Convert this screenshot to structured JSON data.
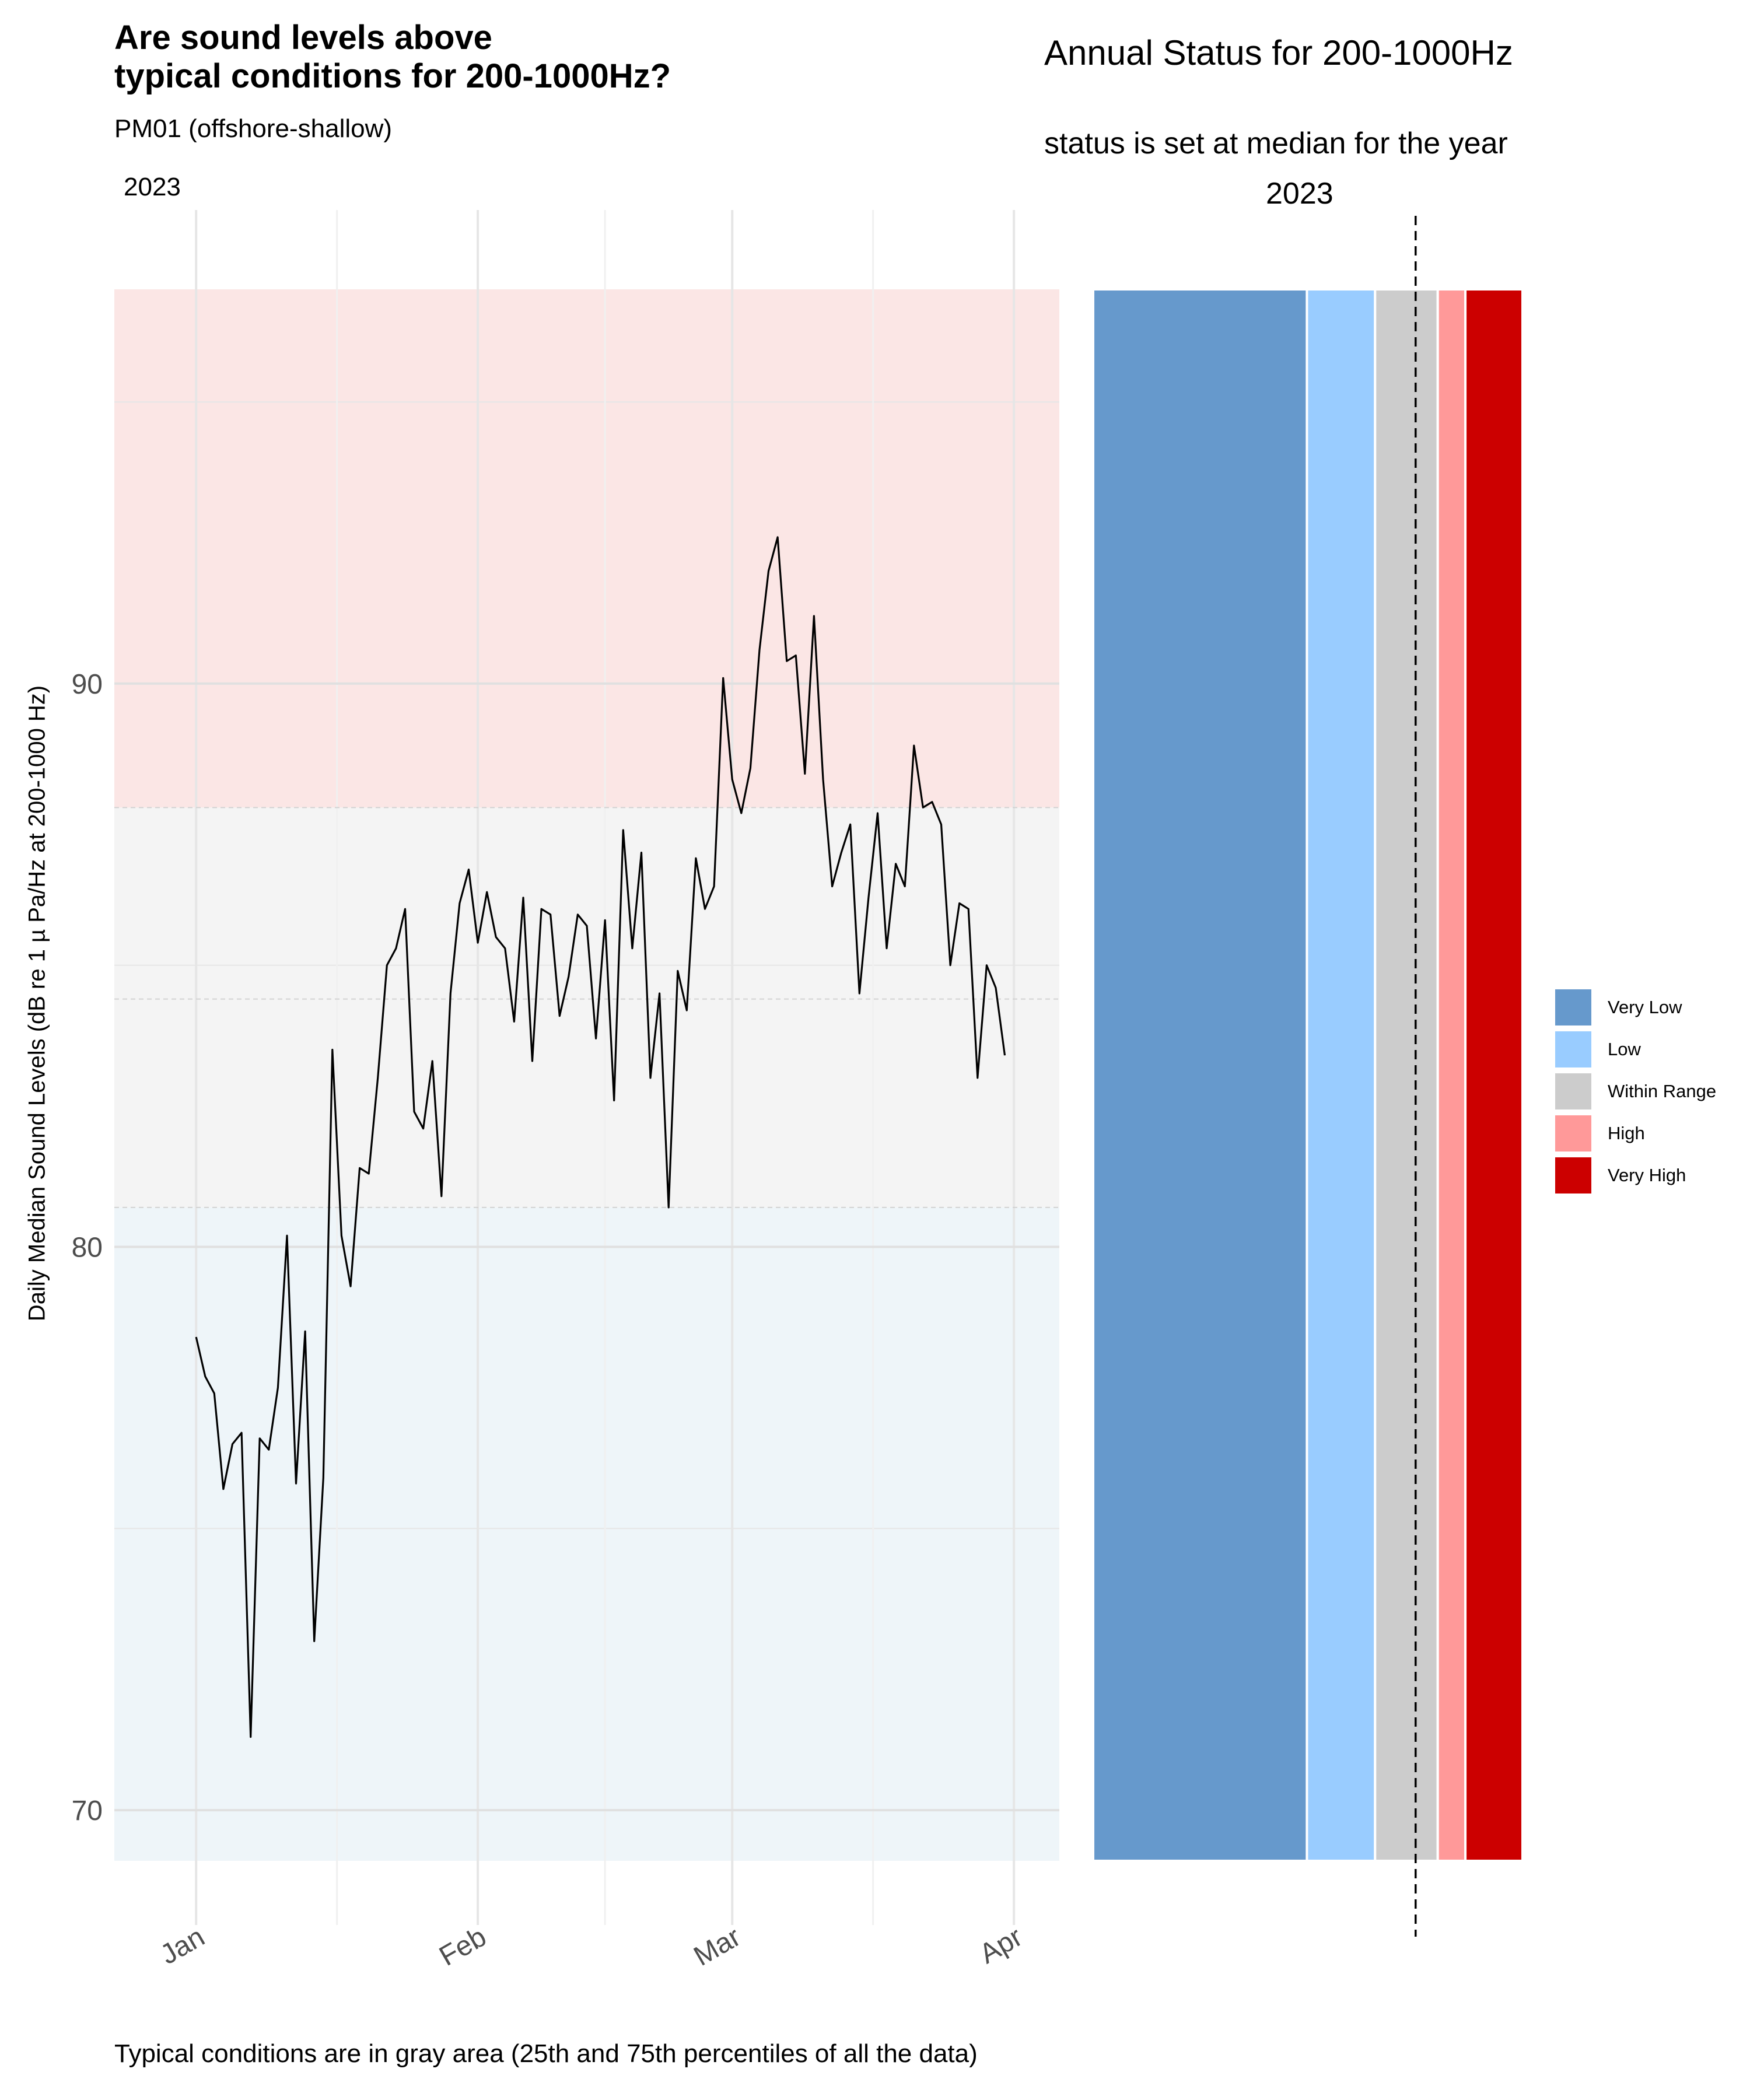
{
  "main": {
    "title": "Are sound levels above\ntypical conditions for 200-1000Hz?",
    "subtitle": "PM01 (offshore-shallow)",
    "facet_year": "2023",
    "caption": "Typical conditions are in gray area (25th and 75th percentiles of all the data)"
  },
  "side": {
    "title": "Annual Status for 200-1000Hz",
    "subtitle": "status is set at median for the year",
    "year": "2023"
  },
  "legend": [
    {
      "label": "Very Low",
      "color": "#6699cc"
    },
    {
      "label": "Low",
      "color": "#99ccff"
    },
    {
      "label": "Within Range",
      "color": "#cccccc"
    },
    {
      "label": "High",
      "color": "#ff9999"
    },
    {
      "label": "Very High",
      "color": "#cc0000"
    }
  ],
  "chart_data": [
    {
      "type": "line",
      "ylabel": "Daily Median Sound Levels (dB re 1 µ Pa/Hz at 200-1000 Hz)",
      "xlabel": "",
      "ylim": [
        69.1,
        97.0
      ],
      "yticks": [
        70,
        80,
        90
      ],
      "xlim": [
        "2022-12-23",
        "2023-04-06"
      ],
      "xticks": [
        {
          "date": "2023-01-01",
          "label": "Jan"
        },
        {
          "date": "2023-02-01",
          "label": "Feb"
        },
        {
          "date": "2023-03-01",
          "label": "Mar"
        },
        {
          "date": "2023-04-01",
          "label": "Apr"
        }
      ],
      "grid": true,
      "bands": [
        {
          "name": "Low",
          "from": 69.1,
          "to": 80.7,
          "color": "#eef5f9"
        },
        {
          "name": "Within Range",
          "from": 80.7,
          "to": 87.8,
          "color": "#f4f4f4"
        },
        {
          "name": "High",
          "from": 87.8,
          "to": 97.0,
          "color": "#fbe6e5"
        }
      ],
      "reference_lines": [
        80.7,
        84.4,
        87.8
      ],
      "series": [
        {
          "color": "#000000",
          "x": [
            "2023-01-01",
            "2023-01-02",
            "2023-01-03",
            "2023-01-04",
            "2023-01-05",
            "2023-01-06",
            "2023-01-07",
            "2023-01-08",
            "2023-01-09",
            "2023-01-10",
            "2023-01-11",
            "2023-01-12",
            "2023-01-13",
            "2023-01-14",
            "2023-01-15",
            "2023-01-16",
            "2023-01-17",
            "2023-01-18",
            "2023-01-19",
            "2023-01-20",
            "2023-01-21",
            "2023-01-22",
            "2023-01-23",
            "2023-01-24",
            "2023-01-25",
            "2023-01-26",
            "2023-01-27",
            "2023-01-28",
            "2023-01-29",
            "2023-01-30",
            "2023-01-31",
            "2023-02-01",
            "2023-02-02",
            "2023-02-03",
            "2023-02-04",
            "2023-02-05",
            "2023-02-06",
            "2023-02-07",
            "2023-02-08",
            "2023-02-09",
            "2023-02-10",
            "2023-02-11",
            "2023-02-12",
            "2023-02-13",
            "2023-02-14",
            "2023-02-15",
            "2023-02-16",
            "2023-02-17",
            "2023-02-18",
            "2023-02-19",
            "2023-02-20",
            "2023-02-21",
            "2023-02-22",
            "2023-02-23",
            "2023-02-24",
            "2023-02-25",
            "2023-02-26",
            "2023-02-27",
            "2023-02-28",
            "2023-03-01",
            "2023-03-02",
            "2023-03-03",
            "2023-03-04",
            "2023-03-05",
            "2023-03-06",
            "2023-03-07",
            "2023-03-08",
            "2023-03-09",
            "2023-03-10",
            "2023-03-11",
            "2023-03-12",
            "2023-03-13",
            "2023-03-14",
            "2023-03-15",
            "2023-03-16",
            "2023-03-17",
            "2023-03-18",
            "2023-03-19",
            "2023-03-20",
            "2023-03-21",
            "2023-03-22",
            "2023-03-23",
            "2023-03-24",
            "2023-03-25",
            "2023-03-26",
            "2023-03-27",
            "2023-03-28",
            "2023-03-29",
            "2023-03-30",
            "2023-03-31"
          ],
          "y": [
            78.4,
            77.7,
            77.4,
            75.7,
            76.5,
            76.7,
            71.3,
            76.6,
            76.4,
            77.5,
            80.2,
            75.8,
            78.5,
            73.0,
            75.9,
            83.5,
            80.2,
            79.3,
            81.4,
            81.3,
            83.0,
            85.0,
            85.3,
            86.0,
            82.4,
            82.1,
            83.3,
            80.9,
            84.5,
            86.1,
            86.7,
            85.4,
            86.3,
            85.5,
            85.3,
            84.0,
            86.2,
            83.3,
            86.0,
            85.9,
            84.1,
            84.8,
            85.9,
            85.7,
            83.7,
            85.8,
            82.6,
            87.4,
            85.3,
            87.0,
            83.0,
            84.5,
            80.7,
            84.9,
            84.2,
            86.9,
            86.0,
            86.4,
            90.1,
            88.3,
            87.7,
            88.5,
            90.6,
            92.0,
            92.6,
            90.4,
            90.5,
            88.4,
            91.2,
            88.3,
            86.4,
            87.0,
            87.5,
            84.5,
            86.2,
            87.7,
            85.3,
            86.8,
            86.4,
            88.9,
            87.8,
            87.9,
            87.5,
            85.0,
            86.1,
            86.0,
            83.0,
            85.0,
            84.6,
            83.4
          ]
        }
      ]
    },
    {
      "type": "bar",
      "title": "Annual Status for 200-1000Hz",
      "subtitle": "status is set at median for the year",
      "orientation": "horizontal-stacked",
      "categories": [
        "Very Low",
        "Low",
        "Within Range",
        "High",
        "Very High"
      ],
      "values": [
        69.1,
        80.7,
        84.4,
        87.8,
        89.3
      ],
      "range_end": 92.4,
      "marker": {
        "label": "2023",
        "value": 86.6,
        "style": "dashed"
      }
    }
  ]
}
